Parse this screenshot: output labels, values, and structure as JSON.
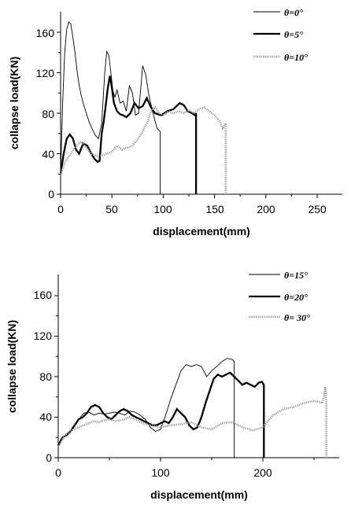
{
  "chart_data": [
    {
      "type": "line",
      "xlabel": "displacement(mm)",
      "ylabel": "collapse load(KN)",
      "xlim": [
        0,
        275
      ],
      "ylim": [
        0,
        180
      ],
      "xticks": [
        "0",
        "50",
        "100",
        "150",
        "200",
        "250"
      ],
      "yticks": [
        "0",
        "40",
        "80",
        "120",
        "160"
      ],
      "grid": false,
      "legend_position": "top-right",
      "series": [
        {
          "name": "θ=0°",
          "style": "thin",
          "x": [
            0,
            2,
            4,
            6,
            8,
            10,
            12,
            14,
            16,
            18,
            20,
            22,
            25,
            28,
            31,
            34,
            37,
            40,
            43,
            45,
            47,
            49,
            51,
            53,
            55,
            58,
            61,
            64,
            67,
            70,
            73,
            76,
            80,
            83,
            86,
            90,
            94,
            97,
            97,
            98
          ],
          "y": [
            20,
            90,
            140,
            163,
            170,
            168,
            155,
            140,
            122,
            108,
            98,
            90,
            80,
            71,
            64,
            58,
            55,
            70,
            120,
            141,
            137,
            120,
            102,
            96,
            103,
            90,
            92,
            82,
            107,
            100,
            78,
            80,
            127,
            118,
            98,
            80,
            65,
            62,
            0,
            0
          ]
        },
        {
          "name": "θ=5°",
          "style": "thick",
          "x": [
            0,
            3,
            6,
            9,
            12,
            15,
            18,
            22,
            26,
            30,
            33,
            36,
            38,
            40,
            42,
            44,
            46,
            48,
            50,
            52,
            55,
            58,
            61,
            64,
            68,
            72,
            76,
            80,
            84,
            88,
            92,
            98,
            104,
            110,
            116,
            120,
            124,
            128,
            131,
            132,
            132
          ],
          "y": [
            20,
            40,
            55,
            59,
            55,
            44,
            40,
            50,
            48,
            40,
            35,
            32,
            33,
            60,
            72,
            88,
            105,
            117,
            105,
            90,
            82,
            79,
            78,
            76,
            80,
            90,
            85,
            87,
            95,
            86,
            80,
            78,
            82,
            84,
            90,
            88,
            82,
            80,
            78,
            80,
            0
          ]
        },
        {
          "name": "θ=10°",
          "style": "dotted",
          "x": [
            0,
            5,
            10,
            15,
            20,
            25,
            30,
            35,
            40,
            45,
            50,
            55,
            60,
            65,
            70,
            75,
            80,
            85,
            88,
            92,
            96,
            100,
            105,
            110,
            115,
            120,
            125,
            130,
            135,
            140,
            145,
            150,
            155,
            158,
            160,
            161,
            161
          ],
          "y": [
            20,
            33,
            40,
            48,
            52,
            46,
            40,
            38,
            38,
            40,
            42,
            48,
            44,
            46,
            48,
            54,
            62,
            72,
            82,
            86,
            80,
            78,
            82,
            80,
            82,
            80,
            83,
            80,
            84,
            86,
            82,
            78,
            72,
            65,
            68,
            70,
            0
          ]
        }
      ]
    },
    {
      "type": "line",
      "xlabel": "displacement(mm)",
      "ylabel": "collapse load(KN)",
      "xlim": [
        0,
        275
      ],
      "ylim": [
        0,
        180
      ],
      "xticks": [
        "0",
        "100",
        "200"
      ],
      "yticks": [
        "0",
        "40",
        "80",
        "120",
        "160"
      ],
      "grid": false,
      "legend_position": "top-right",
      "series": [
        {
          "name": "θ=15°",
          "style": "thin",
          "x": [
            0,
            5,
            10,
            15,
            20,
            25,
            30,
            35,
            40,
            45,
            50,
            55,
            60,
            65,
            70,
            75,
            80,
            85,
            90,
            95,
            100,
            105,
            110,
            115,
            120,
            125,
            130,
            135,
            140,
            145,
            150,
            155,
            160,
            165,
            170,
            172,
            172,
            173
          ],
          "y": [
            12,
            20,
            25,
            30,
            38,
            44,
            45,
            42,
            44,
            43,
            44,
            45,
            44,
            42,
            46,
            45,
            42,
            38,
            30,
            26,
            28,
            42,
            58,
            72,
            86,
            92,
            90,
            92,
            90,
            80,
            86,
            90,
            95,
            98,
            97,
            95,
            0,
            0
          ]
        },
        {
          "name": "θ=20°",
          "style": "thick",
          "x": [
            0,
            4,
            8,
            12,
            16,
            20,
            24,
            28,
            32,
            36,
            40,
            44,
            48,
            52,
            56,
            60,
            64,
            68,
            72,
            76,
            80,
            84,
            88,
            92,
            96,
            100,
            104,
            108,
            112,
            116,
            120,
            124,
            128,
            132,
            136,
            140,
            144,
            148,
            152,
            156,
            160,
            164,
            168,
            172,
            176,
            180,
            184,
            188,
            192,
            196,
            199,
            201,
            201
          ],
          "y": [
            12,
            20,
            22,
            26,
            32,
            38,
            40,
            44,
            50,
            52,
            50,
            44,
            40,
            38,
            42,
            46,
            48,
            46,
            42,
            40,
            38,
            36,
            34,
            32,
            32,
            34,
            36,
            34,
            40,
            48,
            44,
            40,
            32,
            28,
            30,
            40,
            54,
            66,
            78,
            82,
            80,
            82,
            84,
            80,
            76,
            72,
            74,
            72,
            70,
            74,
            75,
            72,
            0
          ]
        },
        {
          "name": "θ= 30°",
          "style": "dotted",
          "x": [
            0,
            5,
            10,
            15,
            20,
            25,
            30,
            35,
            40,
            45,
            50,
            55,
            60,
            65,
            70,
            75,
            80,
            90,
            100,
            110,
            120,
            130,
            140,
            150,
            160,
            170,
            180,
            190,
            200,
            210,
            220,
            230,
            240,
            250,
            255,
            258,
            260,
            261,
            262,
            262
          ],
          "y": [
            10,
            20,
            25,
            28,
            30,
            32,
            34,
            36,
            35,
            37,
            38,
            36,
            37,
            38,
            40,
            38,
            35,
            32,
            30,
            32,
            33,
            35,
            30,
            28,
            34,
            35,
            30,
            27,
            30,
            42,
            48,
            50,
            54,
            56,
            55,
            54,
            62,
            70,
            56,
            0
          ]
        }
      ]
    }
  ]
}
